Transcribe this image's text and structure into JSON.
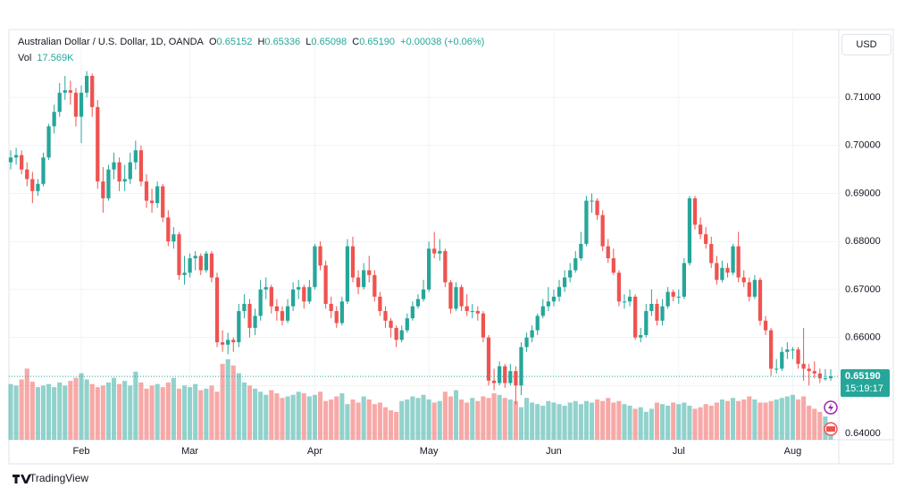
{
  "chart_data": {
    "type": "candlestick",
    "title": "Australian Dollar / U.S. Dollar, 1D, OANDA",
    "header": {
      "o_label": "O",
      "open": "0.65152",
      "h_label": "H",
      "high": "0.65336",
      "l_label": "L",
      "low": "0.65098",
      "c_label": "C",
      "close": "0.65190",
      "change": "+0.00038 (+0.06%)",
      "vol_label": "Vol",
      "vol": "17.569K"
    },
    "currency": "USD",
    "brand": "TradingView",
    "last_price": {
      "value": 0.6519,
      "label": "0.65190"
    },
    "countdown": "15:19:17",
    "up_color": "#26a69a",
    "down_color": "#ef5350",
    "grid": true,
    "ylim": [
      0.6387,
      0.7238
    ],
    "yticks": [
      {
        "value": 0.64,
        "label": "0.64000"
      },
      {
        "value": 0.65,
        "label": "0.65000"
      },
      {
        "value": 0.66,
        "label": "0.66000"
      },
      {
        "value": 0.67,
        "label": "0.67000"
      },
      {
        "value": 0.68,
        "label": "0.68000"
      },
      {
        "value": 0.69,
        "label": "0.69000"
      },
      {
        "value": 0.7,
        "label": "0.70000"
      },
      {
        "value": 0.71,
        "label": "0.71000"
      }
    ],
    "categories": [
      null,
      null,
      null,
      null,
      null,
      null,
      null,
      null,
      null,
      null,
      null,
      null,
      null,
      "Feb",
      null,
      null,
      null,
      null,
      null,
      null,
      null,
      null,
      null,
      null,
      null,
      null,
      null,
      null,
      null,
      null,
      null,
      null,
      null,
      "Mar",
      null,
      null,
      null,
      null,
      null,
      null,
      null,
      null,
      null,
      null,
      null,
      null,
      null,
      null,
      null,
      null,
      null,
      null,
      null,
      null,
      null,
      null,
      "Apr",
      null,
      null,
      null,
      null,
      null,
      null,
      null,
      null,
      null,
      null,
      null,
      null,
      null,
      null,
      null,
      null,
      null,
      null,
      null,
      null,
      "May",
      null,
      null,
      null,
      null,
      null,
      null,
      null,
      null,
      null,
      null,
      null,
      null,
      null,
      null,
      null,
      null,
      null,
      null,
      null,
      null,
      null,
      null,
      "Jun",
      null,
      null,
      null,
      null,
      null,
      null,
      null,
      null,
      null,
      null,
      null,
      null,
      null,
      null,
      null,
      null,
      null,
      null,
      null,
      null,
      null,
      null,
      "Jul",
      null,
      null,
      null,
      null,
      null,
      null,
      null,
      null,
      null,
      null,
      null,
      null,
      null,
      null,
      null,
      null,
      null,
      null,
      null,
      null,
      "Aug",
      null,
      null,
      null,
      null,
      null,
      null,
      null
    ],
    "candles": [
      [
        0.6965,
        0.699,
        0.695,
        0.6975
      ],
      [
        0.6975,
        0.6995,
        0.696,
        0.698
      ],
      [
        0.698,
        0.699,
        0.694,
        0.695
      ],
      [
        0.695,
        0.6965,
        0.6915,
        0.693
      ],
      [
        0.693,
        0.6945,
        0.688,
        0.6905
      ],
      [
        0.6905,
        0.693,
        0.6895,
        0.692
      ],
      [
        0.692,
        0.6985,
        0.6915,
        0.6975
      ],
      [
        0.6975,
        0.7045,
        0.697,
        0.704
      ],
      [
        0.704,
        0.7085,
        0.7025,
        0.707
      ],
      [
        0.707,
        0.713,
        0.706,
        0.711
      ],
      [
        0.711,
        0.7145,
        0.7095,
        0.7115
      ],
      [
        0.7115,
        0.7135,
        0.7085,
        0.711
      ],
      [
        0.711,
        0.712,
        0.704,
        0.706
      ],
      [
        0.706,
        0.7125,
        0.7005,
        0.711
      ],
      [
        0.711,
        0.7155,
        0.71,
        0.7145
      ],
      [
        0.7145,
        0.715,
        0.706,
        0.708
      ],
      [
        0.708,
        0.7095,
        0.691,
        0.6925
      ],
      [
        0.6925,
        0.6955,
        0.686,
        0.689
      ],
      [
        0.689,
        0.696,
        0.6885,
        0.695
      ],
      [
        0.695,
        0.6985,
        0.693,
        0.6965
      ],
      [
        0.6965,
        0.6975,
        0.6905,
        0.6925
      ],
      [
        0.6925,
        0.696,
        0.6905,
        0.693
      ],
      [
        0.693,
        0.6985,
        0.692,
        0.6965
      ],
      [
        0.6965,
        0.701,
        0.695,
        0.699
      ],
      [
        0.699,
        0.7,
        0.6915,
        0.6925
      ],
      [
        0.6925,
        0.694,
        0.687,
        0.6885
      ],
      [
        0.6885,
        0.691,
        0.686,
        0.688
      ],
      [
        0.688,
        0.6925,
        0.687,
        0.6915
      ],
      [
        0.6915,
        0.692,
        0.684,
        0.685
      ],
      [
        0.685,
        0.6865,
        0.679,
        0.68
      ],
      [
        0.68,
        0.683,
        0.6785,
        0.6815
      ],
      [
        0.6815,
        0.682,
        0.672,
        0.673
      ],
      [
        0.673,
        0.677,
        0.671,
        0.6735
      ],
      [
        0.6735,
        0.6775,
        0.6725,
        0.6765
      ],
      [
        0.6765,
        0.678,
        0.674,
        0.677
      ],
      [
        0.677,
        0.6775,
        0.673,
        0.674
      ],
      [
        0.674,
        0.678,
        0.6735,
        0.6775
      ],
      [
        0.6775,
        0.678,
        0.6715,
        0.6725
      ],
      [
        0.6725,
        0.6735,
        0.658,
        0.659
      ],
      [
        0.659,
        0.6615,
        0.657,
        0.6585
      ],
      [
        0.6585,
        0.661,
        0.6565,
        0.6595
      ],
      [
        0.6595,
        0.66,
        0.657,
        0.659
      ],
      [
        0.659,
        0.667,
        0.658,
        0.6655
      ],
      [
        0.6655,
        0.669,
        0.664,
        0.667
      ],
      [
        0.667,
        0.668,
        0.66,
        0.662
      ],
      [
        0.662,
        0.666,
        0.6605,
        0.6645
      ],
      [
        0.6645,
        0.672,
        0.6635,
        0.67
      ],
      [
        0.67,
        0.6725,
        0.668,
        0.6705
      ],
      [
        0.6705,
        0.671,
        0.665,
        0.6665
      ],
      [
        0.6665,
        0.668,
        0.6635,
        0.6655
      ],
      [
        0.6655,
        0.6665,
        0.6625,
        0.6635
      ],
      [
        0.6635,
        0.668,
        0.663,
        0.6665
      ],
      [
        0.6665,
        0.6715,
        0.6655,
        0.67
      ],
      [
        0.67,
        0.672,
        0.668,
        0.6705
      ],
      [
        0.6705,
        0.671,
        0.666,
        0.6675
      ],
      [
        0.6675,
        0.672,
        0.667,
        0.6705
      ],
      [
        0.6705,
        0.6795,
        0.67,
        0.679
      ],
      [
        0.679,
        0.68,
        0.674,
        0.675
      ],
      [
        0.675,
        0.676,
        0.666,
        0.667
      ],
      [
        0.667,
        0.6685,
        0.664,
        0.6655
      ],
      [
        0.6655,
        0.6665,
        0.662,
        0.663
      ],
      [
        0.663,
        0.6685,
        0.6625,
        0.6675
      ],
      [
        0.6675,
        0.6805,
        0.667,
        0.679
      ],
      [
        0.679,
        0.681,
        0.6715,
        0.6725
      ],
      [
        0.6725,
        0.674,
        0.669,
        0.6705
      ],
      [
        0.6705,
        0.6755,
        0.67,
        0.674
      ],
      [
        0.674,
        0.677,
        0.6715,
        0.673
      ],
      [
        0.673,
        0.674,
        0.6675,
        0.6685
      ],
      [
        0.6685,
        0.6695,
        0.6645,
        0.6655
      ],
      [
        0.6655,
        0.6665,
        0.662,
        0.6635
      ],
      [
        0.6635,
        0.664,
        0.66,
        0.662
      ],
      [
        0.662,
        0.6625,
        0.658,
        0.6595
      ],
      [
        0.6595,
        0.6625,
        0.659,
        0.6615
      ],
      [
        0.6615,
        0.665,
        0.661,
        0.664
      ],
      [
        0.664,
        0.6675,
        0.6635,
        0.6665
      ],
      [
        0.6665,
        0.669,
        0.666,
        0.668
      ],
      [
        0.668,
        0.672,
        0.6675,
        0.67
      ],
      [
        0.67,
        0.68,
        0.6695,
        0.6785
      ],
      [
        0.6785,
        0.682,
        0.6765,
        0.6775
      ],
      [
        0.6775,
        0.6805,
        0.676,
        0.678
      ],
      [
        0.678,
        0.6785,
        0.6705,
        0.6715
      ],
      [
        0.6715,
        0.672,
        0.665,
        0.666
      ],
      [
        0.666,
        0.6715,
        0.6655,
        0.6705
      ],
      [
        0.6705,
        0.671,
        0.6655,
        0.6665
      ],
      [
        0.6665,
        0.669,
        0.6645,
        0.6655
      ],
      [
        0.6655,
        0.667,
        0.664,
        0.6655
      ],
      [
        0.6655,
        0.6665,
        0.6635,
        0.665
      ],
      [
        0.665,
        0.6655,
        0.659,
        0.66
      ],
      [
        0.66,
        0.6605,
        0.65,
        0.651
      ],
      [
        0.651,
        0.6535,
        0.649,
        0.6505
      ],
      [
        0.6505,
        0.655,
        0.65,
        0.654
      ],
      [
        0.654,
        0.6545,
        0.6495,
        0.6505
      ],
      [
        0.6505,
        0.6545,
        0.65,
        0.653
      ],
      [
        0.653,
        0.654,
        0.646,
        0.65
      ],
      [
        0.65,
        0.659,
        0.648,
        0.658
      ],
      [
        0.658,
        0.661,
        0.657,
        0.66
      ],
      [
        0.66,
        0.6625,
        0.659,
        0.6615
      ],
      [
        0.6615,
        0.665,
        0.6605,
        0.6645
      ],
      [
        0.6645,
        0.668,
        0.664,
        0.6665
      ],
      [
        0.6665,
        0.6705,
        0.6655,
        0.6675
      ],
      [
        0.6675,
        0.67,
        0.6665,
        0.6685
      ],
      [
        0.6685,
        0.672,
        0.6675,
        0.6705
      ],
      [
        0.6705,
        0.674,
        0.6695,
        0.6725
      ],
      [
        0.6725,
        0.6755,
        0.6715,
        0.674
      ],
      [
        0.674,
        0.678,
        0.6735,
        0.6765
      ],
      [
        0.6765,
        0.682,
        0.676,
        0.6795
      ],
      [
        0.6795,
        0.6895,
        0.679,
        0.6885
      ],
      [
        0.6885,
        0.69,
        0.686,
        0.6885
      ],
      [
        0.6885,
        0.689,
        0.6845,
        0.6855
      ],
      [
        0.6855,
        0.6865,
        0.678,
        0.679
      ],
      [
        0.679,
        0.6805,
        0.6755,
        0.6765
      ],
      [
        0.6765,
        0.6785,
        0.673,
        0.6735
      ],
      [
        0.6735,
        0.674,
        0.6665,
        0.6675
      ],
      [
        0.6675,
        0.669,
        0.666,
        0.6675
      ],
      [
        0.6675,
        0.67,
        0.6665,
        0.6685
      ],
      [
        0.6685,
        0.669,
        0.6595,
        0.66
      ],
      [
        0.66,
        0.662,
        0.659,
        0.6605
      ],
      [
        0.6605,
        0.667,
        0.66,
        0.6655
      ],
      [
        0.6655,
        0.67,
        0.6645,
        0.667
      ],
      [
        0.667,
        0.668,
        0.6625,
        0.6635
      ],
      [
        0.6635,
        0.668,
        0.6625,
        0.6665
      ],
      [
        0.6665,
        0.6705,
        0.666,
        0.6695
      ],
      [
        0.6695,
        0.67,
        0.6675,
        0.6685
      ],
      [
        0.6685,
        0.67,
        0.667,
        0.6685
      ],
      [
        0.6685,
        0.6765,
        0.668,
        0.6755
      ],
      [
        0.6755,
        0.6895,
        0.675,
        0.689
      ],
      [
        0.689,
        0.6895,
        0.6825,
        0.6835
      ],
      [
        0.6835,
        0.685,
        0.6805,
        0.6815
      ],
      [
        0.6815,
        0.683,
        0.6785,
        0.6795
      ],
      [
        0.6795,
        0.681,
        0.6745,
        0.6755
      ],
      [
        0.6755,
        0.677,
        0.671,
        0.672
      ],
      [
        0.672,
        0.676,
        0.6715,
        0.6745
      ],
      [
        0.6745,
        0.6755,
        0.6725,
        0.6735
      ],
      [
        0.6735,
        0.6795,
        0.673,
        0.679
      ],
      [
        0.679,
        0.682,
        0.6715,
        0.6725
      ],
      [
        0.6725,
        0.674,
        0.6705,
        0.6715
      ],
      [
        0.6715,
        0.6725,
        0.6675,
        0.6685
      ],
      [
        0.6685,
        0.673,
        0.668,
        0.672
      ],
      [
        0.672,
        0.6725,
        0.6625,
        0.6635
      ],
      [
        0.6635,
        0.6645,
        0.6605,
        0.6615
      ],
      [
        0.6615,
        0.662,
        0.652,
        0.6535
      ],
      [
        0.6535,
        0.6555,
        0.6525,
        0.6535
      ],
      [
        0.6535,
        0.658,
        0.653,
        0.657
      ],
      [
        0.657,
        0.659,
        0.6555,
        0.6575
      ],
      [
        0.6575,
        0.658,
        0.6555,
        0.6575
      ],
      [
        0.6575,
        0.658,
        0.6535,
        0.6545
      ],
      [
        0.6545,
        0.662,
        0.651,
        0.6535
      ],
      [
        0.6535,
        0.6545,
        0.65,
        0.653
      ],
      [
        0.653,
        0.655,
        0.6515,
        0.6525
      ],
      [
        0.6525,
        0.6535,
        0.6505,
        0.6515
      ],
      [
        0.6515,
        0.6534,
        0.651,
        0.65152
      ],
      [
        0.65152,
        0.65336,
        0.65098,
        0.6519
      ]
    ],
    "volume": [
      72,
      70,
      78,
      92,
      75,
      68,
      70,
      72,
      68,
      74,
      70,
      76,
      80,
      86,
      78,
      72,
      68,
      70,
      74,
      80,
      72,
      76,
      70,
      88,
      74,
      66,
      70,
      72,
      68,
      74,
      80,
      66,
      70,
      68,
      72,
      64,
      66,
      70,
      62,
      98,
      104,
      96,
      86,
      74,
      70,
      66,
      62,
      58,
      64,
      60,
      54,
      56,
      58,
      62,
      60,
      56,
      58,
      62,
      50,
      52,
      56,
      60,
      46,
      52,
      48,
      56,
      52,
      46,
      48,
      42,
      38,
      36,
      50,
      52,
      56,
      54,
      58,
      52,
      48,
      50,
      62,
      56,
      64,
      52,
      48,
      54,
      50,
      56,
      54,
      60,
      58,
      54,
      52,
      50,
      42,
      54,
      48,
      46,
      44,
      50,
      48,
      46,
      44,
      48,
      50,
      46,
      50,
      48,
      52,
      50,
      54,
      48,
      50,
      46,
      44,
      40,
      42,
      36,
      40,
      48,
      46,
      44,
      48,
      46,
      48,
      44,
      40,
      42,
      46,
      44,
      48,
      52,
      50,
      54,
      50,
      52,
      56,
      52,
      48,
      48,
      50,
      52,
      54,
      56,
      58,
      52,
      56,
      44,
      40,
      36,
      30,
      17.569
    ]
  }
}
